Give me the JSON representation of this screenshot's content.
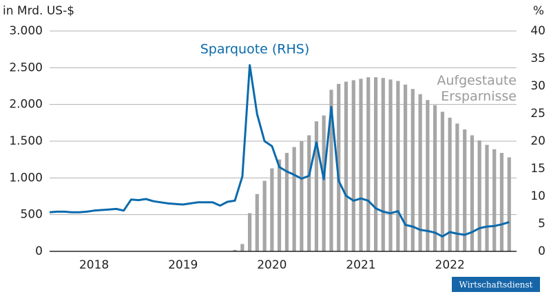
{
  "chart_data": {
    "type": "combo",
    "ylabel": "in Mrd. US-$",
    "y2label": "%",
    "xlim": [
      2018,
      2023.25
    ],
    "xticks": [
      {
        "value": 2018.5,
        "label": "2018"
      },
      {
        "value": 2019.5,
        "label": "2019"
      },
      {
        "value": 2020.5,
        "label": "2020"
      },
      {
        "value": 2021.5,
        "label": "2021"
      },
      {
        "value": 2022.5,
        "label": "2022"
      }
    ],
    "ylim": [
      0,
      3000
    ],
    "yticks": [
      {
        "value": 0,
        "label": "0"
      },
      {
        "value": 500,
        "label": "500"
      },
      {
        "value": 1000,
        "label": "1.000"
      },
      {
        "value": 1500,
        "label": "1.500"
      },
      {
        "value": 2000,
        "label": "2.000"
      },
      {
        "value": 2500,
        "label": "2.500"
      },
      {
        "value": 3000,
        "label": "3.000"
      }
    ],
    "y2lim": [
      0,
      40
    ],
    "y2ticks": [
      0,
      5,
      10,
      15,
      20,
      25,
      30,
      35,
      40
    ],
    "grid": true,
    "x": [
      2018,
      2018.083,
      2018.167,
      2018.25,
      2018.333,
      2018.417,
      2018.5,
      2018.583,
      2018.667,
      2018.75,
      2018.833,
      2018.917,
      2019,
      2019.083,
      2019.167,
      2019.25,
      2019.333,
      2019.417,
      2019.5,
      2019.583,
      2019.667,
      2019.75,
      2019.833,
      2019.917,
      2020,
      2020.083,
      2020.167,
      2020.25,
      2020.333,
      2020.417,
      2020.5,
      2020.583,
      2020.667,
      2020.75,
      2020.833,
      2020.917,
      2021,
      2021.083,
      2021.167,
      2021.25,
      2021.333,
      2021.417,
      2021.5,
      2021.583,
      2021.667,
      2021.75,
      2021.833,
      2021.917,
      2022,
      2022.083,
      2022.167,
      2022.25,
      2022.333,
      2022.417,
      2022.5,
      2022.583,
      2022.667,
      2022.75,
      2022.833,
      2022.917,
      2023,
      2023.083,
      2023.167
    ],
    "series": [
      {
        "name": "Aufgestaute Ersparnisse",
        "type": "bar",
        "color": "#a6a6a6",
        "values": [
          null,
          null,
          null,
          null,
          null,
          null,
          null,
          null,
          null,
          null,
          null,
          null,
          null,
          null,
          null,
          null,
          null,
          null,
          null,
          null,
          null,
          null,
          null,
          null,
          null,
          20,
          100,
          520,
          780,
          960,
          1130,
          1250,
          1340,
          1420,
          1500,
          1580,
          1770,
          1850,
          2200,
          2280,
          2310,
          2330,
          2350,
          2370,
          2370,
          2360,
          2340,
          2320,
          2270,
          2210,
          2140,
          2060,
          1990,
          1900,
          1820,
          1740,
          1660,
          1580,
          1510,
          1450,
          1390,
          1340,
          1280
        ]
      },
      {
        "name": "Sparquote (RHS)",
        "type": "line",
        "axis": "y2",
        "color": "#0a6aad",
        "values": [
          7.1,
          7.2,
          7.2,
          7.1,
          7.1,
          7.2,
          7.4,
          7.5,
          7.6,
          7.7,
          7.4,
          9.4,
          9.3,
          9.5,
          9.1,
          8.9,
          8.7,
          8.6,
          8.5,
          8.7,
          8.9,
          8.9,
          8.9,
          8.3,
          9.0,
          9.2,
          13.6,
          33.8,
          24.9,
          20.0,
          19.1,
          15.3,
          14.5,
          13.9,
          13.2,
          13.7,
          19.8,
          13.1,
          26.2,
          12.8,
          10.1,
          9.2,
          9.6,
          9.2,
          7.8,
          7.2,
          6.9,
          7.3,
          4.8,
          4.5,
          3.9,
          3.7,
          3.4,
          2.7,
          3.5,
          3.2,
          3.0,
          3.5,
          4.2,
          4.5,
          4.6,
          4.9,
          5.3
        ]
      }
    ]
  },
  "badge": "Wirtschaftsdienst"
}
